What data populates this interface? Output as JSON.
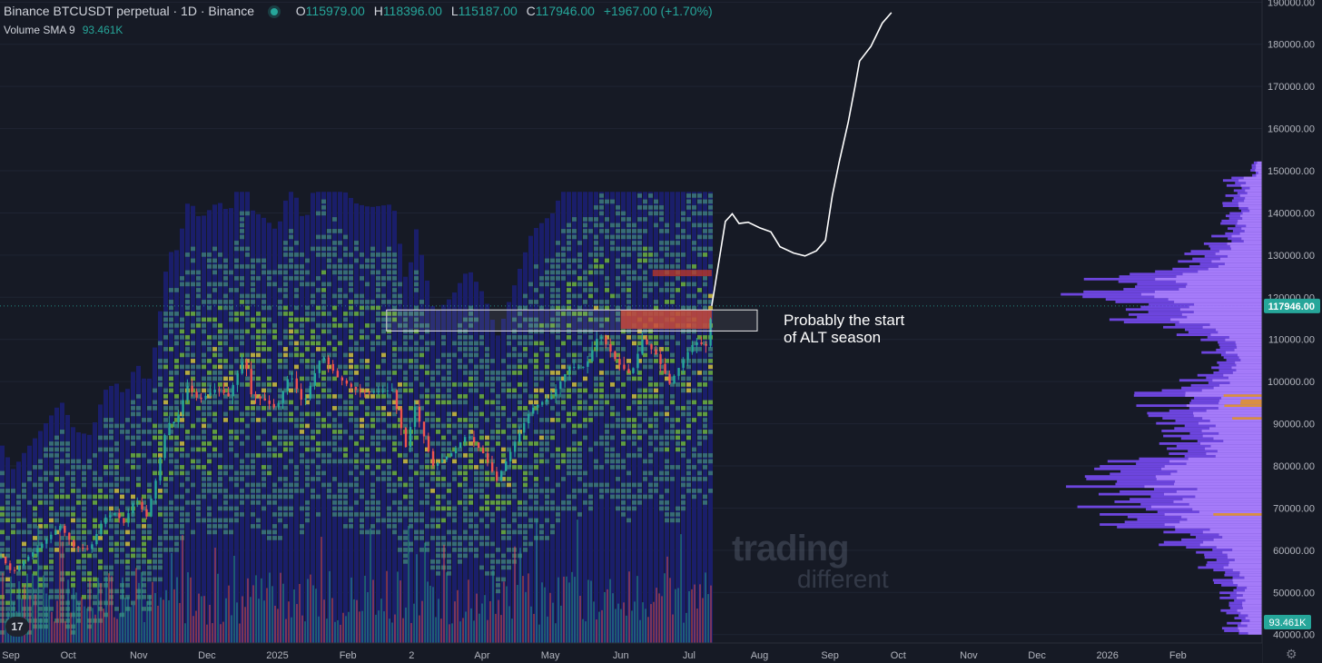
{
  "header": {
    "symbol": "Binance BTCUSDT perpetual · 1D · Binance",
    "open_label": "O",
    "open": "115979.00",
    "high_label": "H",
    "high": "118396.00",
    "low_label": "L",
    "low": "115187.00",
    "close_label": "C",
    "close": "117946.00",
    "change": "+1967.00 (+1.70%)",
    "indicator_name": "Volume SMA 9",
    "indicator_value": "93.461K"
  },
  "annotation": {
    "text": "Probably the start\nof ALT season"
  },
  "watermark": {
    "line1": "trading",
    "line2": "different"
  },
  "logo": {
    "text": "17"
  },
  "colors": {
    "background": "#161a25",
    "up": "#26a69a",
    "down": "#ef5350",
    "projection": "#ffffff",
    "price_badge": "#26a69a",
    "profile_light": "#b388ff",
    "profile_dark": "#7c4dff",
    "profile_orange": "#e0922a",
    "heatmap_low": "#1a1f6e",
    "heatmap_mid": "#3d7a78",
    "heatmap_high": "#6cb33a",
    "heatmap_hot": "#d1c23b",
    "heatmap_max": "#c0392b"
  },
  "chart_data": {
    "type": "line",
    "title": "Binance BTCUSDT perpetual · 1D · Binance",
    "xlabel": "",
    "ylabel": "",
    "y_axis": {
      "ticks": [
        40000,
        50000,
        60000,
        70000,
        80000,
        90000,
        100000,
        110000,
        120000,
        130000,
        140000,
        150000,
        160000,
        170000,
        180000,
        190000
      ],
      "tick_labels": [
        "40000.00",
        "50000.00",
        "60000.00",
        "70000.00",
        "80000.00",
        "90000.00",
        "100000.00",
        "110000.00",
        "120000.00",
        "130000.00",
        "140000.00",
        "150000.00",
        "160000.00",
        "170000.00",
        "180000.00",
        "190000.00"
      ],
      "range": [
        38000,
        190500
      ],
      "current_price": 117946,
      "current_price_label": "117946.00",
      "volume_sma_label": "93.461K"
    },
    "x_axis": {
      "range": [
        "2024-09-01",
        "2026-03-10"
      ],
      "ticks": [
        {
          "label": "Sep",
          "date": "2024-09-01"
        },
        {
          "label": "Oct",
          "date": "2024-10-01"
        },
        {
          "label": "Nov",
          "date": "2024-11-01"
        },
        {
          "label": "Dec",
          "date": "2024-12-01"
        },
        {
          "label": "2025",
          "date": "2025-01-01"
        },
        {
          "label": "Feb",
          "date": "2025-02-01"
        },
        {
          "label": "2",
          "date": "2025-03-01"
        },
        {
          "label": "Apr",
          "date": "2025-04-01"
        },
        {
          "label": "May",
          "date": "2025-05-01"
        },
        {
          "label": "Jun",
          "date": "2025-06-01"
        },
        {
          "label": "Jul",
          "date": "2025-07-01"
        },
        {
          "label": "Aug",
          "date": "2025-08-01"
        },
        {
          "label": "Sep",
          "date": "2025-09-01"
        },
        {
          "label": "Oct",
          "date": "2025-10-01"
        },
        {
          "label": "Nov",
          "date": "2025-11-01"
        },
        {
          "label": "Dec",
          "date": "2025-12-01"
        },
        {
          "label": "2026",
          "date": "2026-01-01"
        },
        {
          "label": "Feb",
          "date": "2026-02-01"
        }
      ]
    },
    "price_series": [
      [
        "2024-09-01",
        58500
      ],
      [
        "2024-09-06",
        54500
      ],
      [
        "2024-09-10",
        57000
      ],
      [
        "2024-09-18",
        61000
      ],
      [
        "2024-09-27",
        65800
      ],
      [
        "2024-10-03",
        60800
      ],
      [
        "2024-10-10",
        60200
      ],
      [
        "2024-10-16",
        67500
      ],
      [
        "2024-10-21",
        68800
      ],
      [
        "2024-10-25",
        66500
      ],
      [
        "2024-10-30",
        72300
      ],
      [
        "2024-11-04",
        68000
      ],
      [
        "2024-11-08",
        76500
      ],
      [
        "2024-11-13",
        90000
      ],
      [
        "2024-11-17",
        90500
      ],
      [
        "2024-11-22",
        99000
      ],
      [
        "2024-11-27",
        95500
      ],
      [
        "2024-12-05",
        98500
      ],
      [
        "2024-12-10",
        96500
      ],
      [
        "2024-12-17",
        106000
      ],
      [
        "2024-12-20",
        97000
      ],
      [
        "2024-12-26",
        95500
      ],
      [
        "2024-12-31",
        93500
      ],
      [
        "2025-01-06",
        102000
      ],
      [
        "2025-01-12",
        94500
      ],
      [
        "2025-01-20",
        106500
      ],
      [
        "2025-01-27",
        101000
      ],
      [
        "2025-02-04",
        98000
      ],
      [
        "2025-02-10",
        97500
      ],
      [
        "2025-02-20",
        98000
      ],
      [
        "2025-02-26",
        84500
      ],
      [
        "2025-03-02",
        94000
      ],
      [
        "2025-03-10",
        80000
      ],
      [
        "2025-03-18",
        83000
      ],
      [
        "2025-03-25",
        87500
      ],
      [
        "2025-04-01",
        83000
      ],
      [
        "2025-04-07",
        76500
      ],
      [
        "2025-04-14",
        84500
      ],
      [
        "2025-04-22",
        93500
      ],
      [
        "2025-05-01",
        96500
      ],
      [
        "2025-05-09",
        103500
      ],
      [
        "2025-05-16",
        103500
      ],
      [
        "2025-05-22",
        111500
      ],
      [
        "2025-05-30",
        104500
      ],
      [
        "2025-06-05",
        101500
      ],
      [
        "2025-06-10",
        110000
      ],
      [
        "2025-06-16",
        106500
      ],
      [
        "2025-06-22",
        99500
      ],
      [
        "2025-06-30",
        107000
      ],
      [
        "2025-07-03",
        109500
      ],
      [
        "2025-07-08",
        108500
      ],
      [
        "2025-07-11",
        117946
      ]
    ],
    "projection_series": [
      [
        "2025-07-11",
        117946
      ],
      [
        "2025-07-14",
        128000
      ],
      [
        "2025-07-17",
        138000
      ],
      [
        "2025-07-20",
        139800
      ],
      [
        "2025-07-23",
        137500
      ],
      [
        "2025-07-27",
        137800
      ],
      [
        "2025-08-01",
        136500
      ],
      [
        "2025-08-06",
        135500
      ],
      [
        "2025-08-10",
        132000
      ],
      [
        "2025-08-16",
        130500
      ],
      [
        "2025-08-21",
        129800
      ],
      [
        "2025-08-26",
        131000
      ],
      [
        "2025-08-30",
        133500
      ],
      [
        "2025-09-02",
        144000
      ],
      [
        "2025-09-05",
        152000
      ],
      [
        "2025-09-09",
        161500
      ],
      [
        "2025-09-12",
        170000
      ],
      [
        "2025-09-14",
        176000
      ],
      [
        "2025-09-19",
        179500
      ],
      [
        "2025-09-24",
        185000
      ],
      [
        "2025-09-28",
        187500
      ]
    ],
    "highlight_zone": {
      "start": "2025-02-18",
      "end": "2025-07-31",
      "y_low": 112000,
      "y_high": 117000
    }
  }
}
